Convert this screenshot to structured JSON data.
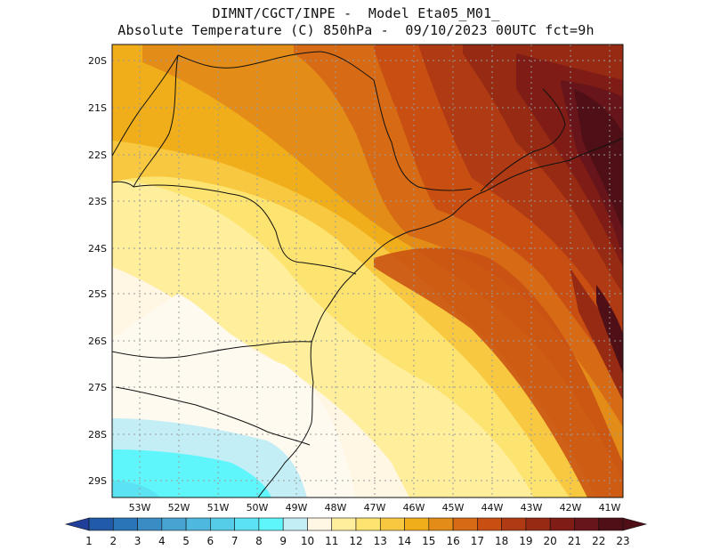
{
  "title": {
    "line1": "DIMNT/CGCT/INPE -  Model Eta05_M01_",
    "line2": "Absolute Temperature (C) 850hPa -  09/10/2023 00UTC fct=9h"
  },
  "axes": {
    "lat_labels": [
      "20S",
      "21S",
      "22S",
      "23S",
      "24S",
      "25S",
      "26S",
      "27S",
      "28S",
      "29S"
    ],
    "lon_labels": [
      "53W",
      "52W",
      "51W",
      "50W",
      "49W",
      "48W",
      "47W",
      "46W",
      "45W",
      "44W",
      "43W",
      "42W",
      "41W"
    ]
  },
  "colorbar": {
    "labels": [
      "1",
      "2",
      "3",
      "4",
      "5",
      "6",
      "7",
      "8",
      "9",
      "10",
      "11",
      "12",
      "13",
      "14",
      "15",
      "16",
      "17",
      "18",
      "19",
      "20",
      "21",
      "22",
      "23"
    ],
    "colors": [
      "#1f3f9a",
      "#215aa8",
      "#2a74b8",
      "#3a8cc5",
      "#47a3d2",
      "#4fb8de",
      "#55cde9",
      "#5be3f3",
      "#5ef6fb",
      "#c4eef6",
      "#fff6e3",
      "#ffef9c",
      "#fde36f",
      "#f8c940",
      "#f1ae1b",
      "#e48c18",
      "#d76a15",
      "#c84e12",
      "#b03a13",
      "#962a12",
      "#7e1c15",
      "#67151a",
      "#4f0f16"
    ]
  },
  "chart_data": {
    "type": "heatmap",
    "variable": "Absolute Temperature (C) 850hPa",
    "units": "C",
    "lon_range": [
      -53.5,
      -40.6
    ],
    "lat_range": [
      -29.4,
      -19.9
    ],
    "color_levels": [
      1,
      2,
      3,
      4,
      5,
      6,
      7,
      8,
      9,
      10,
      11,
      12,
      13,
      14,
      15,
      16,
      17,
      18,
      19,
      20,
      21,
      22,
      23
    ],
    "grid": true,
    "field_description_points": [
      {
        "lon": -41.5,
        "lat": -21.5,
        "value": 23
      },
      {
        "lon": -44.0,
        "lat": -21.5,
        "value": 20
      },
      {
        "lon": -47.0,
        "lat": -21.0,
        "value": 17
      },
      {
        "lon": -50.5,
        "lat": -21.0,
        "value": 16
      },
      {
        "lon": -52.5,
        "lat": -23.0,
        "value": 14
      },
      {
        "lon": -51.0,
        "lat": -25.5,
        "value": 12
      },
      {
        "lon": -48.5,
        "lat": -26.5,
        "value": 11
      },
      {
        "lon": -50.5,
        "lat": -28.5,
        "value": 10
      },
      {
        "lon": -52.5,
        "lat": -29.2,
        "value": 8
      },
      {
        "lon": -46.5,
        "lat": -27.5,
        "value": 13
      },
      {
        "lon": -44.0,
        "lat": -25.0,
        "value": 18
      },
      {
        "lon": -42.0,
        "lat": -24.5,
        "value": 20
      }
    ]
  }
}
